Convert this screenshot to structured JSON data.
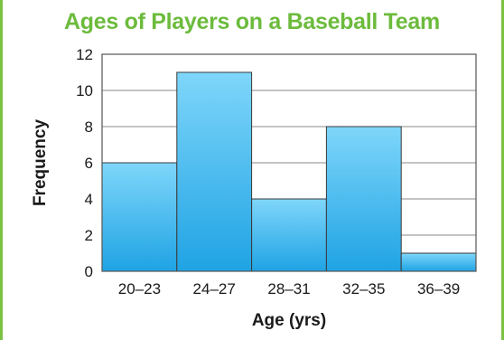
{
  "chart_data": {
    "type": "bar",
    "title": "Ages of Players on a Baseball Team",
    "xlabel": "Age (yrs)",
    "ylabel": "Frequency",
    "categories": [
      "20–23",
      "24–27",
      "28–31",
      "32–35",
      "36–39"
    ],
    "values": [
      6,
      11,
      4,
      8,
      1
    ],
    "ylim": [
      0,
      12
    ],
    "yticks": [
      0,
      2,
      4,
      6,
      8,
      10,
      12
    ],
    "grid": true,
    "colors": {
      "bar_top": "#7fd6fa",
      "bar_bottom": "#1fa3e4",
      "title": "#6cbb3c",
      "frame": "#7cc242"
    }
  }
}
